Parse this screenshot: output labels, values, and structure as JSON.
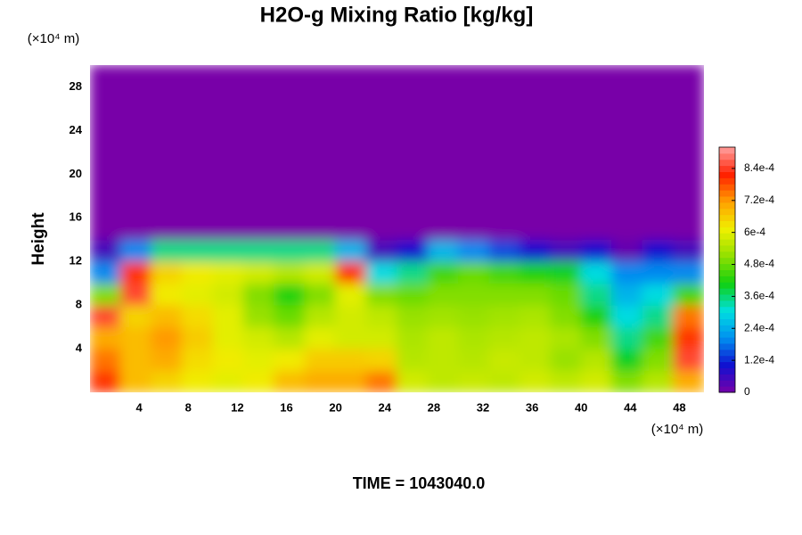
{
  "chart_data": {
    "type": "heatmap",
    "title": "H2O-g Mixing Ratio [kg/kg]",
    "ylabel": "Height",
    "yunit": "(×10⁴ m)",
    "xlabel": "(×10⁴ m)",
    "annotation": "TIME = 1043040.0",
    "xlim": [
      0,
      50
    ],
    "ylim": [
      0,
      30
    ],
    "xticks": [
      4,
      8,
      12,
      16,
      20,
      24,
      28,
      32,
      36,
      40,
      44,
      48
    ],
    "yticks": [
      4,
      8,
      12,
      16,
      20,
      24,
      28
    ],
    "x": [
      1.25,
      3.75,
      6.25,
      8.75,
      11.25,
      13.75,
      16.25,
      18.75,
      21.25,
      23.75,
      26.25,
      28.75,
      31.25,
      33.75,
      36.25,
      38.75,
      41.25,
      43.75,
      46.25,
      48.75
    ],
    "y": [
      1,
      3,
      5,
      7,
      9,
      11,
      13,
      15,
      17,
      19,
      21,
      23,
      25,
      27,
      29
    ],
    "z": [
      [
        0.0008,
        0.00068,
        0.00065,
        0.00062,
        0.0006,
        0.00062,
        0.00068,
        0.0007,
        0.0007,
        0.00075,
        0.00058,
        0.00056,
        0.00057,
        0.00056,
        0.00058,
        0.00056,
        0.00058,
        0.0005,
        0.00055,
        0.0007
      ],
      [
        0.00075,
        0.00068,
        0.0007,
        0.00064,
        0.00062,
        0.0006,
        0.00062,
        0.00066,
        0.00066,
        0.00065,
        0.00055,
        0.00056,
        0.00055,
        0.00057,
        0.00056,
        0.00052,
        0.00055,
        0.0004,
        0.0005,
        0.00085
      ],
      [
        0.0007,
        0.00068,
        0.00072,
        0.00066,
        0.0006,
        0.00058,
        0.00055,
        0.0006,
        0.00058,
        0.00058,
        0.00054,
        0.00056,
        0.00054,
        0.00055,
        0.00056,
        0.00054,
        0.0005,
        0.00035,
        0.00045,
        0.0008
      ],
      [
        0.00085,
        0.00065,
        0.00068,
        0.00064,
        0.0006,
        0.00052,
        0.00048,
        0.00055,
        0.00058,
        0.00056,
        0.00052,
        0.00053,
        0.00052,
        0.00053,
        0.00054,
        0.0005,
        0.00042,
        0.0003,
        0.00035,
        0.00075
      ],
      [
        0.0005,
        0.00085,
        0.00062,
        0.0006,
        0.00058,
        0.0005,
        0.00042,
        0.0005,
        0.0006,
        0.0005,
        0.00048,
        0.0005,
        0.0005,
        0.0005,
        0.0005,
        0.00048,
        0.00035,
        0.00025,
        0.0003,
        0.00045
      ],
      [
        0.0002,
        0.0008,
        0.00065,
        0.00062,
        0.0006,
        0.00058,
        0.00055,
        0.00058,
        0.0008,
        0.0003,
        0.00035,
        0.00045,
        0.00048,
        0.00045,
        0.00042,
        0.0004,
        0.0003,
        0.0002,
        0.0002,
        0.0002
      ],
      [
        5e-05,
        0.0002,
        0.00035,
        0.00035,
        0.00035,
        0.00035,
        0.00035,
        0.00035,
        0.00025,
        5e-05,
        0.0001,
        0.00025,
        0.0002,
        0.00015,
        0.0001,
        5e-05,
        0.0001,
        2e-05,
        0.0001,
        5e-05
      ],
      [
        0,
        0,
        0,
        0,
        0,
        0,
        0,
        0,
        0,
        0,
        0,
        0,
        0,
        0,
        0,
        0,
        0,
        0,
        0,
        0
      ],
      [
        0,
        0,
        0,
        0,
        0,
        0,
        0,
        0,
        0,
        0,
        0,
        0,
        0,
        0,
        0,
        0,
        0,
        0,
        0,
        0
      ],
      [
        0,
        0,
        0,
        0,
        0,
        0,
        0,
        0,
        0,
        0,
        0,
        0,
        0,
        0,
        0,
        0,
        0,
        0,
        0,
        0
      ],
      [
        0,
        0,
        0,
        0,
        0,
        0,
        0,
        0,
        0,
        0,
        0,
        0,
        0,
        0,
        0,
        0,
        0,
        0,
        0,
        0
      ],
      [
        0,
        0,
        0,
        0,
        0,
        0,
        0,
        0,
        0,
        0,
        0,
        0,
        0,
        0,
        0,
        0,
        0,
        0,
        0,
        0
      ],
      [
        0,
        0,
        0,
        0,
        0,
        0,
        0,
        0,
        0,
        0,
        0,
        0,
        0,
        0,
        0,
        0,
        0,
        0,
        0,
        0
      ],
      [
        0,
        0,
        0,
        0,
        0,
        0,
        0,
        0,
        0,
        0,
        0,
        0,
        0,
        0,
        0,
        0,
        0,
        0,
        0,
        0
      ],
      [
        0,
        0,
        0,
        0,
        0,
        0,
        0,
        0,
        0,
        0,
        0,
        0,
        0,
        0,
        0,
        0,
        0,
        0,
        0,
        0
      ]
    ],
    "clim": [
      0,
      0.00092
    ],
    "colormap": [
      "#7800a8",
      "#1010d0",
      "#0090f0",
      "#00e0e0",
      "#10d010",
      "#90e000",
      "#f0f000",
      "#ffa000",
      "#ff2000",
      "#ffa0a0"
    ],
    "cticks": [
      0,
      {
        "value": 0.00012,
        "label": "1.2e-4"
      },
      {
        "value": 0.00024,
        "label": "2.4e-4"
      },
      {
        "value": 0.00036,
        "label": "3.6e-4"
      },
      {
        "value": 0.00048,
        "label": "4.8e-4"
      },
      {
        "value": 0.0006,
        "label": "6e-4"
      },
      {
        "value": 0.00072,
        "label": "7.2e-4"
      },
      {
        "value": 0.00084,
        "label": "8.4e-4"
      }
    ]
  }
}
